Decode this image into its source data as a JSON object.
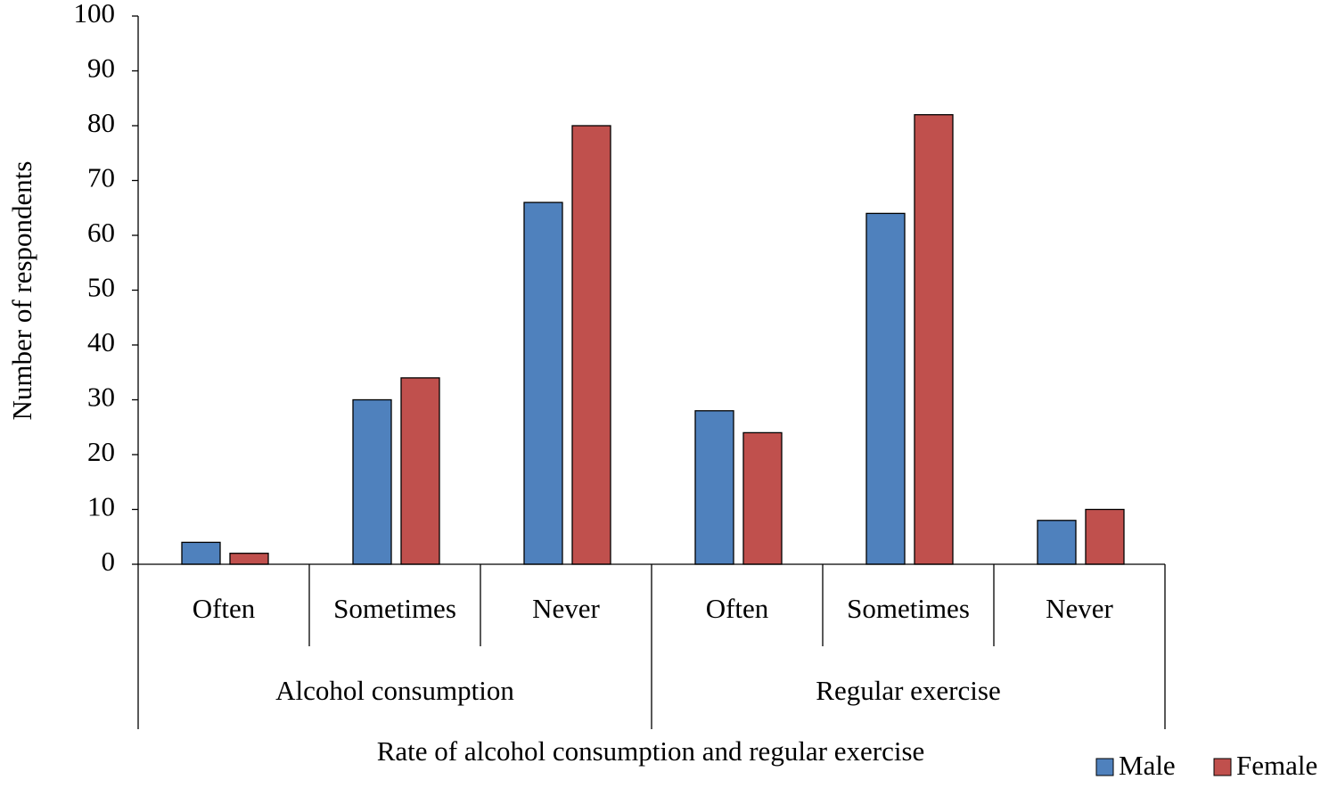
{
  "chart_data": {
    "type": "bar",
    "x_label": "Rate of alcohol consumption and regular exercise",
    "y_label": "Number of respondents",
    "groups": [
      {
        "label": "Alcohol consumption",
        "categories": [
          "Often",
          "Sometimes",
          "Never"
        ]
      },
      {
        "label": "Regular exercise",
        "categories": [
          "Often",
          "Sometimes",
          "Never"
        ]
      }
    ],
    "series": [
      {
        "name": "Male",
        "color": "#4f81bd",
        "values": [
          4,
          30,
          66,
          28,
          64,
          8
        ]
      },
      {
        "name": "Female",
        "color": "#c0504d",
        "values": [
          2,
          34,
          80,
          24,
          82,
          10
        ]
      }
    ],
    "ylim": [
      0,
      100
    ],
    "yticks": [
      0,
      10,
      20,
      30,
      40,
      50,
      60,
      70,
      80,
      90,
      100
    ],
    "legend": "bottom-right"
  }
}
